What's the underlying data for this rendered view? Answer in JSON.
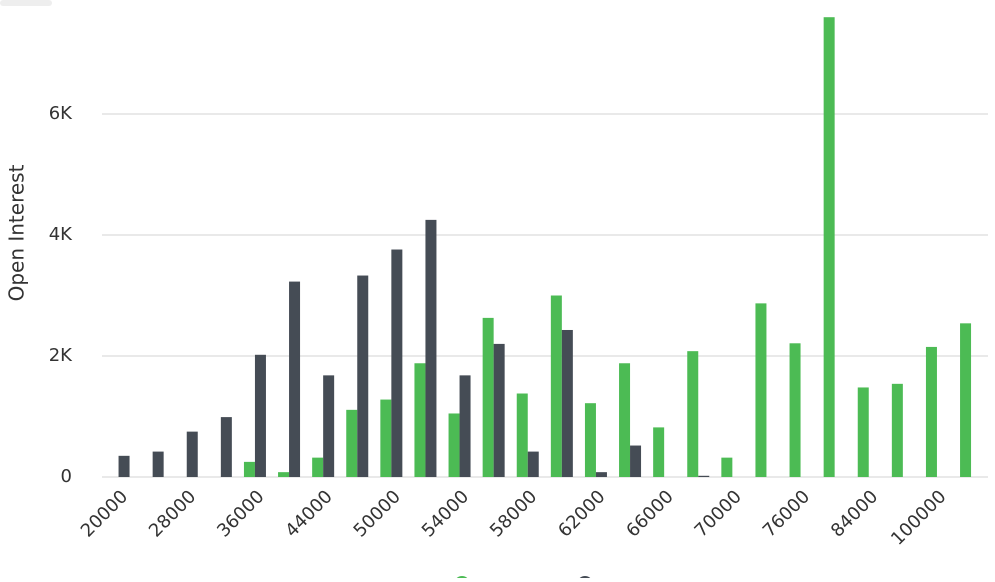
{
  "chart_data": {
    "type": "bar",
    "y_label": "Open Interest",
    "categories": [
      "20000",
      null,
      "28000",
      null,
      "36000",
      null,
      "44000",
      null,
      "50000",
      null,
      "54000",
      null,
      "58000",
      null,
      "62000",
      null,
      "66000",
      null,
      "70000",
      null,
      "76000",
      null,
      "84000",
      null,
      "100000",
      null
    ],
    "series": [
      {
        "color": "#4cbb54",
        "values": [
          null,
          null,
          null,
          null,
          250,
          80,
          320,
          1110,
          1280,
          1880,
          1050,
          2630,
          1380,
          3000,
          1220,
          1880,
          820,
          2080,
          320,
          2870,
          2210,
          7600,
          1480,
          1540,
          2150,
          2540
        ]
      },
      {
        "color": "#454c55",
        "values": [
          350,
          420,
          750,
          990,
          2020,
          3230,
          1680,
          3330,
          3760,
          4250,
          1680,
          2200,
          420,
          2430,
          80,
          520,
          null,
          20,
          null,
          null,
          null,
          null,
          null,
          null,
          null,
          null
        ]
      }
    ],
    "ylim": [
      0,
      7800
    ],
    "yticks": [
      0,
      {
        "value": 2000,
        "label": "2K"
      },
      {
        "value": 4000,
        "label": "4K"
      },
      {
        "value": 6000,
        "label": "6K"
      }
    ],
    "grid": true
  }
}
